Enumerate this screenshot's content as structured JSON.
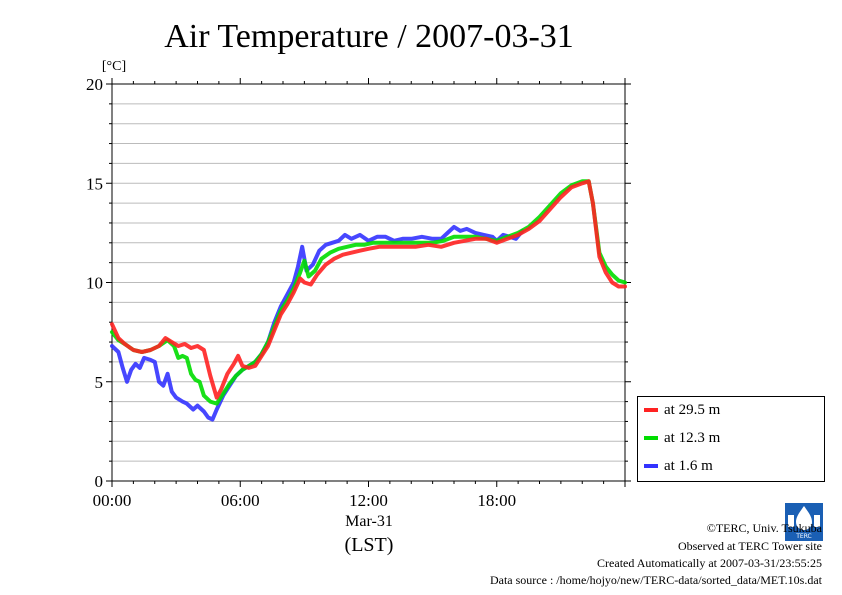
{
  "chart_data": {
    "type": "line",
    "title": "Air Temperature / 2007-03-31",
    "ylabel": "[°C]",
    "xlabel_date": "Mar-31",
    "xlabel_zone": "(LST)",
    "ylim": [
      0,
      20
    ],
    "xlim_hours": [
      0,
      24
    ],
    "y_ticks": [
      "0",
      "5",
      "10",
      "15",
      "20"
    ],
    "x_ticks": [
      {
        "hour": 0,
        "label": "00:00"
      },
      {
        "hour": 6,
        "label": "06:00"
      },
      {
        "hour": 12,
        "label": "12:00"
      },
      {
        "hour": 18,
        "label": "18:00"
      }
    ],
    "grid": true,
    "legend_placement": "right, below plot",
    "series": [
      {
        "name": "at 1.6 m",
        "color": "#3333ff",
        "points": [
          [
            0.0,
            6.8
          ],
          [
            0.3,
            6.5
          ],
          [
            0.5,
            5.7
          ],
          [
            0.7,
            5.0
          ],
          [
            0.9,
            5.6
          ],
          [
            1.1,
            5.9
          ],
          [
            1.3,
            5.7
          ],
          [
            1.5,
            6.2
          ],
          [
            1.8,
            6.1
          ],
          [
            2.0,
            6.0
          ],
          [
            2.2,
            5.0
          ],
          [
            2.4,
            4.8
          ],
          [
            2.6,
            5.4
          ],
          [
            2.8,
            4.5
          ],
          [
            3.0,
            4.2
          ],
          [
            3.3,
            4.0
          ],
          [
            3.5,
            3.9
          ],
          [
            3.8,
            3.6
          ],
          [
            4.0,
            3.8
          ],
          [
            4.3,
            3.5
          ],
          [
            4.5,
            3.2
          ],
          [
            4.7,
            3.1
          ],
          [
            4.9,
            3.6
          ],
          [
            5.2,
            4.3
          ],
          [
            5.5,
            4.8
          ],
          [
            5.8,
            5.3
          ],
          [
            6.1,
            5.6
          ],
          [
            6.4,
            5.8
          ],
          [
            6.7,
            6.0
          ],
          [
            7.0,
            6.4
          ],
          [
            7.3,
            7.0
          ],
          [
            7.6,
            8.0
          ],
          [
            7.9,
            8.8
          ],
          [
            8.2,
            9.4
          ],
          [
            8.5,
            10.0
          ],
          [
            8.7,
            10.8
          ],
          [
            8.9,
            11.8
          ],
          [
            9.1,
            10.6
          ],
          [
            9.4,
            10.9
          ],
          [
            9.7,
            11.6
          ],
          [
            10.0,
            11.9
          ],
          [
            10.3,
            12.0
          ],
          [
            10.6,
            12.1
          ],
          [
            10.9,
            12.4
          ],
          [
            11.2,
            12.2
          ],
          [
            11.6,
            12.4
          ],
          [
            12.0,
            12.1
          ],
          [
            12.4,
            12.3
          ],
          [
            12.8,
            12.3
          ],
          [
            13.2,
            12.1
          ],
          [
            13.6,
            12.2
          ],
          [
            14.0,
            12.2
          ],
          [
            14.5,
            12.3
          ],
          [
            15.0,
            12.2
          ],
          [
            15.4,
            12.2
          ],
          [
            15.7,
            12.5
          ],
          [
            16.0,
            12.8
          ],
          [
            16.3,
            12.6
          ],
          [
            16.6,
            12.7
          ],
          [
            17.0,
            12.5
          ],
          [
            17.4,
            12.4
          ],
          [
            17.8,
            12.3
          ],
          [
            18.0,
            12.1
          ],
          [
            18.3,
            12.4
          ],
          [
            18.6,
            12.3
          ],
          [
            18.9,
            12.2
          ],
          [
            19.2,
            12.6
          ]
        ]
      },
      {
        "name": "at 12.3 m",
        "color": "#00dd00",
        "points": [
          [
            0.0,
            7.5
          ],
          [
            0.3,
            7.1
          ],
          [
            0.6,
            6.9
          ],
          [
            1.0,
            6.6
          ],
          [
            1.4,
            6.5
          ],
          [
            1.8,
            6.6
          ],
          [
            2.2,
            6.8
          ],
          [
            2.6,
            7.1
          ],
          [
            2.9,
            6.8
          ],
          [
            3.1,
            6.2
          ],
          [
            3.3,
            6.3
          ],
          [
            3.5,
            6.2
          ],
          [
            3.7,
            5.4
          ],
          [
            3.9,
            5.1
          ],
          [
            4.1,
            5.0
          ],
          [
            4.3,
            4.3
          ],
          [
            4.6,
            4.0
          ],
          [
            4.9,
            3.9
          ],
          [
            5.2,
            4.4
          ],
          [
            5.5,
            4.9
          ],
          [
            5.8,
            5.3
          ],
          [
            6.1,
            5.6
          ],
          [
            6.4,
            5.8
          ],
          [
            6.7,
            6.0
          ],
          [
            7.0,
            6.4
          ],
          [
            7.3,
            7.0
          ],
          [
            7.6,
            7.8
          ],
          [
            7.9,
            8.6
          ],
          [
            8.2,
            9.1
          ],
          [
            8.5,
            9.7
          ],
          [
            8.8,
            10.5
          ],
          [
            9.0,
            11.1
          ],
          [
            9.2,
            10.3
          ],
          [
            9.5,
            10.6
          ],
          [
            9.8,
            11.2
          ],
          [
            10.2,
            11.5
          ],
          [
            10.6,
            11.7
          ],
          [
            11.0,
            11.8
          ],
          [
            11.4,
            11.9
          ],
          [
            11.8,
            11.9
          ],
          [
            12.2,
            12.0
          ],
          [
            12.7,
            12.0
          ],
          [
            13.2,
            12.0
          ],
          [
            13.8,
            12.0
          ],
          [
            14.4,
            12.0
          ],
          [
            15.0,
            12.0
          ],
          [
            15.5,
            12.1
          ],
          [
            16.0,
            12.3
          ],
          [
            16.5,
            12.3
          ],
          [
            17.0,
            12.3
          ],
          [
            17.5,
            12.2
          ],
          [
            18.0,
            12.1
          ],
          [
            18.5,
            12.3
          ],
          [
            19.0,
            12.5
          ],
          [
            19.5,
            12.8
          ],
          [
            20.0,
            13.3
          ],
          [
            20.5,
            13.9
          ],
          [
            21.0,
            14.5
          ],
          [
            21.5,
            14.9
          ],
          [
            22.0,
            15.1
          ],
          [
            22.3,
            15.1
          ],
          [
            22.5,
            14.0
          ],
          [
            22.8,
            11.5
          ],
          [
            23.1,
            10.8
          ],
          [
            23.4,
            10.4
          ],
          [
            23.7,
            10.1
          ],
          [
            24.0,
            10.0
          ]
        ]
      },
      {
        "name": "at 29.5 m",
        "color": "#ff2222",
        "points": [
          [
            0.0,
            7.9
          ],
          [
            0.3,
            7.2
          ],
          [
            0.6,
            6.9
          ],
          [
            1.0,
            6.6
          ],
          [
            1.4,
            6.5
          ],
          [
            1.8,
            6.6
          ],
          [
            2.2,
            6.8
          ],
          [
            2.5,
            7.2
          ],
          [
            2.8,
            7.0
          ],
          [
            3.1,
            6.8
          ],
          [
            3.4,
            6.9
          ],
          [
            3.7,
            6.7
          ],
          [
            4.0,
            6.8
          ],
          [
            4.3,
            6.6
          ],
          [
            4.6,
            5.3
          ],
          [
            4.9,
            4.2
          ],
          [
            5.1,
            4.6
          ],
          [
            5.4,
            5.4
          ],
          [
            5.7,
            5.9
          ],
          [
            5.9,
            6.3
          ],
          [
            6.1,
            5.8
          ],
          [
            6.4,
            5.7
          ],
          [
            6.7,
            5.8
          ],
          [
            7.0,
            6.3
          ],
          [
            7.3,
            6.8
          ],
          [
            7.6,
            7.6
          ],
          [
            7.9,
            8.4
          ],
          [
            8.2,
            8.9
          ],
          [
            8.5,
            9.5
          ],
          [
            8.8,
            10.2
          ],
          [
            9.0,
            10.0
          ],
          [
            9.3,
            9.9
          ],
          [
            9.6,
            10.4
          ],
          [
            10.0,
            10.9
          ],
          [
            10.4,
            11.2
          ],
          [
            10.8,
            11.4
          ],
          [
            11.2,
            11.5
          ],
          [
            11.6,
            11.6
          ],
          [
            12.0,
            11.7
          ],
          [
            12.5,
            11.8
          ],
          [
            13.0,
            11.8
          ],
          [
            13.6,
            11.8
          ],
          [
            14.2,
            11.8
          ],
          [
            14.8,
            11.9
          ],
          [
            15.4,
            11.8
          ],
          [
            16.0,
            12.0
          ],
          [
            16.5,
            12.1
          ],
          [
            17.0,
            12.2
          ],
          [
            17.5,
            12.2
          ],
          [
            18.0,
            12.0
          ],
          [
            18.5,
            12.2
          ],
          [
            19.0,
            12.4
          ],
          [
            19.5,
            12.7
          ],
          [
            20.0,
            13.1
          ],
          [
            20.5,
            13.7
          ],
          [
            21.0,
            14.3
          ],
          [
            21.5,
            14.8
          ],
          [
            22.0,
            15.0
          ],
          [
            22.3,
            15.1
          ],
          [
            22.5,
            14.0
          ],
          [
            22.8,
            11.3
          ],
          [
            23.1,
            10.5
          ],
          [
            23.4,
            10.0
          ],
          [
            23.7,
            9.8
          ],
          [
            24.0,
            9.8
          ]
        ]
      }
    ]
  },
  "legend": {
    "items": [
      {
        "label": "at 29.5 m",
        "color": "#ff2222"
      },
      {
        "label": "at 12.3 m",
        "color": "#00dd00"
      },
      {
        "label": "at 1.6 m",
        "color": "#3333ff"
      }
    ]
  },
  "footer": {
    "copyright": "©TERC, Univ. Tsukuba",
    "observed": "Observed at TERC Tower site",
    "created": "Created Automatically at 2007-03-31/23:55:25",
    "source": "Data source : /home/hojyo/new/TERC-data/sorted_data/MET.10s.dat"
  },
  "logo": {
    "icon": "terc-logo-icon",
    "text": "TERC",
    "color": "#1a5fb4"
  }
}
